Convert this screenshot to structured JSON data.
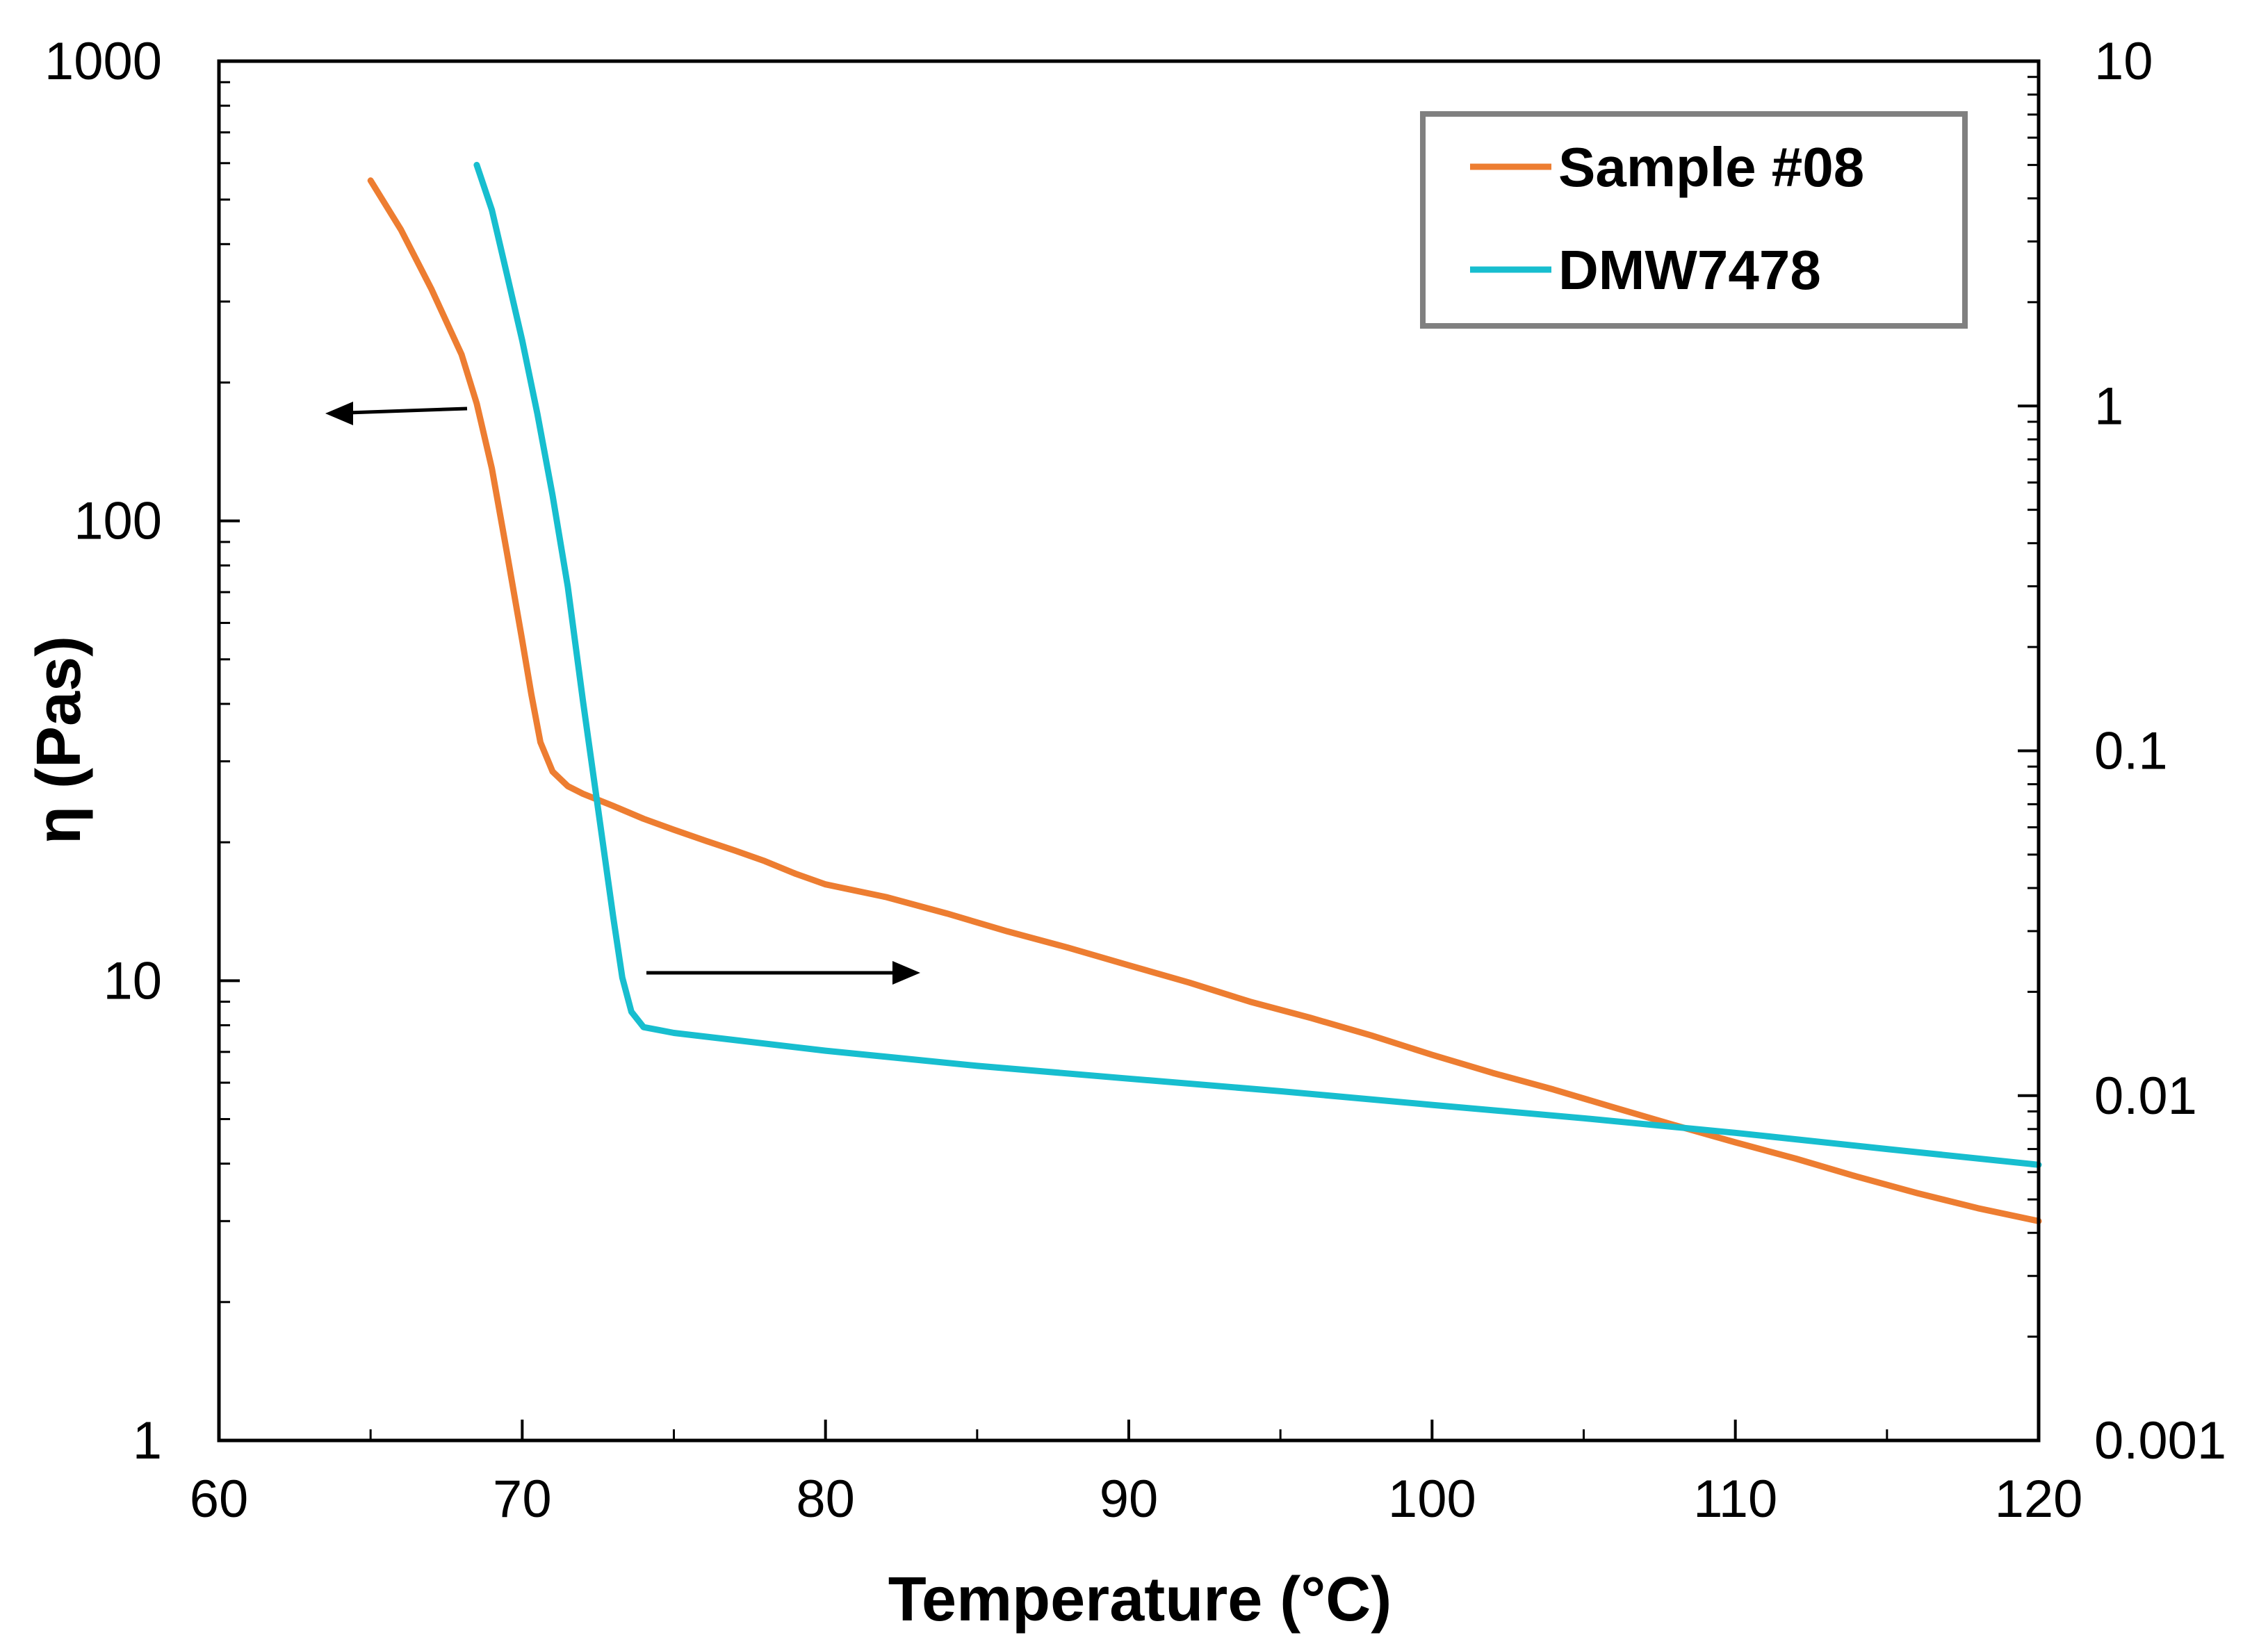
{
  "chart_data": {
    "type": "line",
    "title": "",
    "xlabel": "Temperature (°C)",
    "ylabel": "η (Pas)",
    "xlim": [
      60,
      120
    ],
    "ylim": [
      1,
      1000
    ],
    "y2lim": [
      0.001,
      10
    ],
    "xscale": "linear",
    "yscale": "log",
    "y2scale": "log",
    "grid": false,
    "legend_position": "top-right",
    "x_ticks": [
      "60",
      "70",
      "80",
      "90",
      "100",
      "110",
      "120"
    ],
    "y_ticks": [
      "1",
      "10",
      "100",
      "1000"
    ],
    "y2_ticks": [
      "0.001",
      "0.01",
      "0.1",
      "1",
      "10"
    ],
    "series": [
      {
        "name": "Sample #08",
        "axis": "left",
        "color": "#ED7D31",
        "x": [
          65,
          66,
          67,
          68,
          68.5,
          69,
          69.5,
          70,
          70.3,
          70.6,
          71,
          71.5,
          72,
          73,
          74,
          75,
          76,
          77,
          78,
          79,
          80,
          82,
          84,
          86,
          88,
          90,
          92,
          94,
          96,
          98,
          100,
          102,
          104,
          106,
          108,
          110,
          112,
          114,
          116,
          118,
          120
        ],
        "values": [
          550,
          430,
          320,
          230,
          180,
          130,
          85,
          55,
          42,
          33,
          28.5,
          26.5,
          25.5,
          24,
          22.5,
          21.3,
          20.2,
          19.2,
          18.2,
          17.1,
          16.2,
          15.2,
          14,
          12.8,
          11.8,
          10.8,
          9.9,
          9.0,
          8.3,
          7.6,
          6.9,
          6.3,
          5.8,
          5.3,
          4.85,
          4.45,
          4.1,
          3.75,
          3.45,
          3.2,
          3.0
        ]
      },
      {
        "name": "DMW7478",
        "axis": "right",
        "color": "#17BECF",
        "x": [
          68.5,
          69,
          69.5,
          70,
          70.5,
          71,
          71.5,
          72,
          72.5,
          73,
          73.3,
          73.6,
          74,
          74.5,
          75,
          80,
          85,
          90,
          95,
          100,
          105,
          110,
          115,
          120
        ],
        "values": [
          5.0,
          3.7,
          2.4,
          1.55,
          0.95,
          0.55,
          0.3,
          0.14,
          0.068,
          0.033,
          0.022,
          0.0175,
          0.0158,
          0.0155,
          0.0152,
          0.0135,
          0.0122,
          0.0112,
          0.0103,
          0.0094,
          0.0086,
          0.0078,
          0.007,
          0.0063
        ]
      }
    ],
    "annotations": [
      {
        "type": "arrow",
        "direction": "left",
        "meaning": "Sample #08 uses left axis"
      },
      {
        "type": "arrow",
        "direction": "right",
        "meaning": "DMW7478 uses right axis"
      }
    ]
  }
}
